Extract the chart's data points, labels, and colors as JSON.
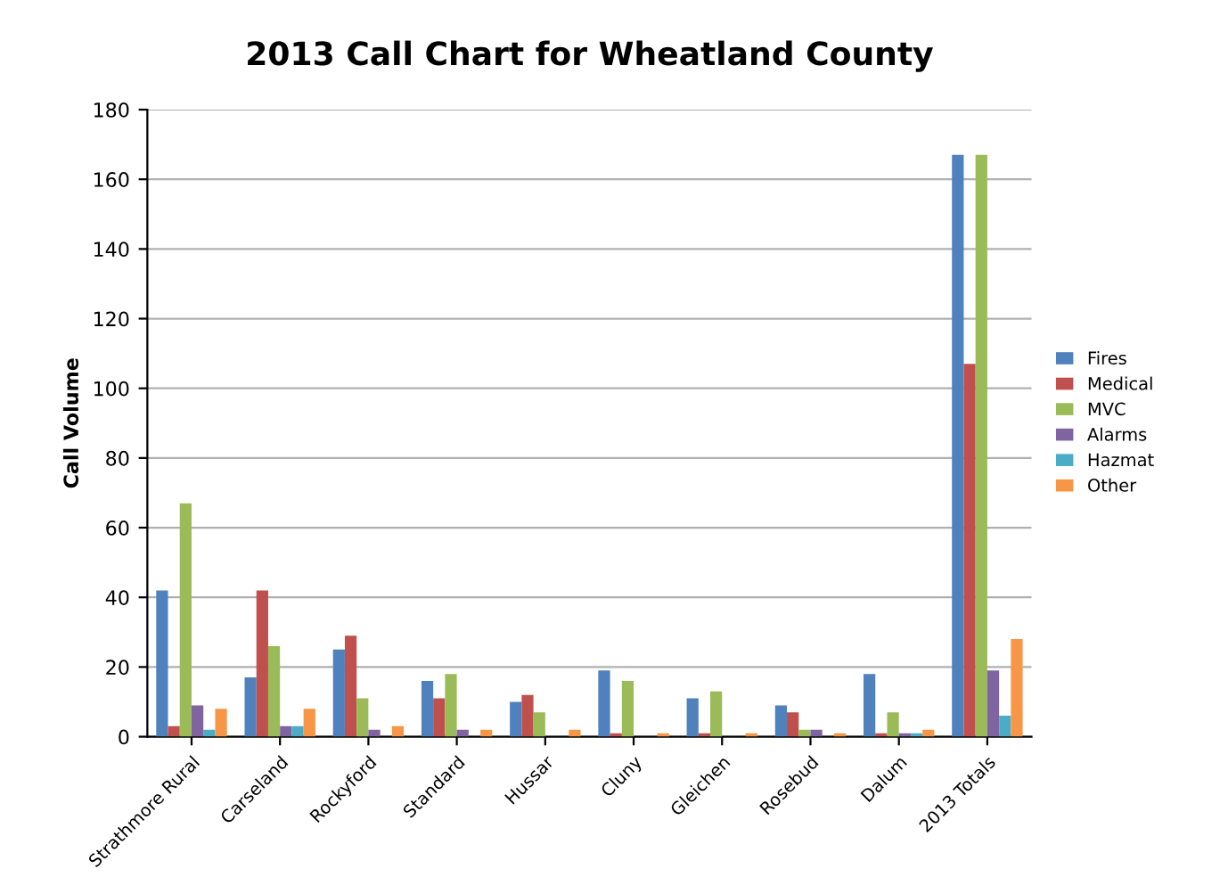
{
  "chart_data": {
    "type": "bar",
    "title": "2013 Call Chart for Wheatland County",
    "ylabel": "Call Volume",
    "categories": [
      "Strathmore Rural",
      "Carseland",
      "Rockyford",
      "Standard",
      "Hussar",
      "Cluny",
      "Gleichen",
      "Rosebud",
      "Dalum",
      "2013 Totals"
    ],
    "series": [
      {
        "name": "Fires",
        "color": "#4f81bd",
        "values": [
          42,
          17,
          25,
          16,
          10,
          19,
          11,
          9,
          18,
          167
        ]
      },
      {
        "name": "Medical",
        "color": "#c0504d",
        "values": [
          3,
          42,
          29,
          11,
          12,
          1,
          1,
          7,
          1,
          107
        ]
      },
      {
        "name": "MVC",
        "color": "#9bbb59",
        "values": [
          67,
          26,
          11,
          18,
          7,
          16,
          13,
          2,
          7,
          167
        ]
      },
      {
        "name": "Alarms",
        "color": "#8064a2",
        "values": [
          9,
          3,
          2,
          2,
          0,
          0,
          0,
          2,
          1,
          19
        ]
      },
      {
        "name": "Hazmat",
        "color": "#4bacc6",
        "values": [
          2,
          3,
          0,
          0,
          0,
          0,
          0,
          0,
          1,
          6
        ]
      },
      {
        "name": "Other",
        "color": "#f79646",
        "values": [
          8,
          8,
          3,
          2,
          2,
          1,
          1,
          1,
          2,
          28
        ]
      }
    ],
    "ylim": [
      0,
      180
    ],
    "yticks": [
      0,
      20,
      40,
      60,
      80,
      100,
      120,
      140,
      160,
      180
    ],
    "grid": "y",
    "legend": "right"
  }
}
